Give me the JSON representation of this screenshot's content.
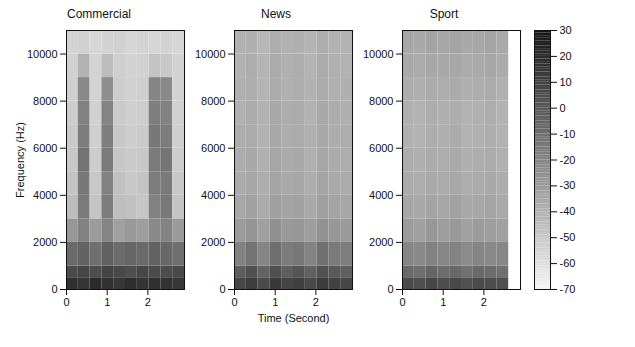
{
  "chart_data": {
    "type": "heatmap",
    "color_range": [
      -70,
      30
    ],
    "color_ticks": [
      30,
      20,
      10,
      0,
      -10,
      -20,
      -30,
      -40,
      -50,
      -60,
      -70
    ],
    "panels": [
      {
        "title": "Commercial",
        "y_label": "Frequency (Hz)",
        "xlim": [
          0,
          2.9
        ],
        "ylim": [
          0,
          11000
        ],
        "xticks": [
          0,
          1,
          2
        ],
        "yticks": [
          0,
          2000,
          4000,
          6000,
          8000,
          10000
        ],
        "time_edges": [
          0,
          0.29,
          0.58,
          0.87,
          1.16,
          1.45,
          1.74,
          2.03,
          2.32,
          2.61,
          2.9
        ],
        "freq_edges": [
          0,
          500,
          1000,
          2000,
          3000,
          4000,
          5000,
          6000,
          7000,
          8000,
          9000,
          10000,
          11000
        ],
        "cells": [
          [
            18,
            16,
            20,
            17,
            15,
            19,
            16,
            18,
            17,
            15
          ],
          [
            6,
            8,
            5,
            9,
            7,
            4,
            8,
            6,
            5,
            7
          ],
          [
            -8,
            -5,
            -10,
            -4,
            -9,
            -6,
            -8,
            -5,
            -7,
            -10
          ],
          [
            -28,
            -18,
            -30,
            -20,
            -32,
            -29,
            -31,
            -22,
            -19,
            -30
          ],
          [
            -45,
            -15,
            -48,
            -16,
            -46,
            -47,
            -49,
            -18,
            -14,
            -48
          ],
          [
            -48,
            -14,
            -50,
            -18,
            -47,
            -50,
            -48,
            -16,
            -15,
            -50
          ],
          [
            -50,
            -12,
            -52,
            -15,
            -49,
            -51,
            -50,
            -15,
            -13,
            -52
          ],
          [
            -51,
            -16,
            -53,
            -17,
            -50,
            -52,
            -51,
            -14,
            -16,
            -53
          ],
          [
            -52,
            -18,
            -54,
            -19,
            -51,
            -53,
            -52,
            -17,
            -18,
            -54
          ],
          [
            -53,
            -22,
            -55,
            -24,
            -52,
            -54,
            -53,
            -20,
            -22,
            -55
          ],
          [
            -54,
            -40,
            -55,
            -45,
            -53,
            -55,
            -54,
            -48,
            -50,
            -55
          ],
          [
            -55,
            -54,
            -56,
            -55,
            -54,
            -56,
            -55,
            -56,
            -55,
            -56
          ]
        ]
      },
      {
        "title": "News",
        "x_label": "Time (Second)",
        "xlim": [
          0,
          2.9
        ],
        "ylim": [
          0,
          11000
        ],
        "xticks": [
          0,
          1,
          2
        ],
        "yticks": [
          0,
          2000,
          4000,
          6000,
          8000,
          10000
        ],
        "time_edges": [
          0,
          0.29,
          0.58,
          0.87,
          1.16,
          1.45,
          1.74,
          2.03,
          2.32,
          2.61,
          2.9
        ],
        "freq_edges": [
          0,
          500,
          1000,
          2000,
          3000,
          4000,
          5000,
          6000,
          7000,
          8000,
          9000,
          10000,
          11000
        ],
        "cells": [
          [
            8,
            12,
            6,
            14,
            9,
            11,
            7,
            13,
            10,
            8
          ],
          [
            -2,
            3,
            -5,
            4,
            -3,
            2,
            -4,
            3,
            -1,
            -3
          ],
          [
            -18,
            -12,
            -20,
            -10,
            -16,
            -14,
            -19,
            -11,
            -15,
            -17
          ],
          [
            -30,
            -27,
            -32,
            -25,
            -29,
            -28,
            -31,
            -26,
            -28,
            -30
          ],
          [
            -35,
            -33,
            -37,
            -32,
            -34,
            -33,
            -36,
            -32,
            -34,
            -35
          ],
          [
            -37,
            -35,
            -38,
            -34,
            -36,
            -35,
            -38,
            -34,
            -36,
            -37
          ],
          [
            -38,
            -36,
            -39,
            -35,
            -37,
            -36,
            -39,
            -35,
            -37,
            -38
          ],
          [
            -38,
            -37,
            -40,
            -36,
            -38,
            -37,
            -39,
            -36,
            -38,
            -38
          ],
          [
            -39,
            -37,
            -40,
            -36,
            -38,
            -37,
            -40,
            -36,
            -38,
            -39
          ],
          [
            -39,
            -38,
            -41,
            -37,
            -39,
            -38,
            -40,
            -37,
            -39,
            -39
          ],
          [
            -40,
            -38,
            -41,
            -37,
            -39,
            -38,
            -41,
            -37,
            -39,
            -40
          ],
          [
            -40,
            -39,
            -42,
            -38,
            -40,
            -39,
            -41,
            -38,
            -40,
            -40
          ]
        ]
      },
      {
        "title": "Sport",
        "xlim": [
          0,
          2.9
        ],
        "ylim": [
          0,
          11000
        ],
        "xticks": [
          0,
          1,
          2
        ],
        "yticks": [
          0,
          2000,
          4000,
          6000,
          8000,
          10000
        ],
        "time_edges": [
          0,
          0.29,
          0.58,
          0.87,
          1.16,
          1.45,
          1.74,
          2.03,
          2.32,
          2.61,
          2.9
        ],
        "freq_edges": [
          0,
          500,
          1000,
          2000,
          3000,
          4000,
          5000,
          6000,
          7000,
          8000,
          9000,
          10000,
          11000
        ],
        "cells": [
          [
            6,
            4,
            8,
            5,
            7,
            3,
            6,
            5,
            4,
            null
          ],
          [
            -8,
            -10,
            -6,
            -9,
            -7,
            -11,
            -8,
            -9,
            -10,
            null
          ],
          [
            -20,
            -22,
            -18,
            -21,
            -19,
            -23,
            -20,
            -22,
            -21,
            null
          ],
          [
            -30,
            -32,
            -28,
            -31,
            -29,
            -33,
            -30,
            -31,
            -32,
            null
          ],
          [
            -35,
            -36,
            -34,
            -35,
            -33,
            -36,
            -35,
            -34,
            -36,
            null
          ],
          [
            -37,
            -38,
            -36,
            -37,
            -35,
            -38,
            -37,
            -36,
            -38,
            null
          ],
          [
            -38,
            -39,
            -37,
            -38,
            -36,
            -39,
            -38,
            -37,
            -39,
            null
          ],
          [
            -39,
            -40,
            -38,
            -39,
            -37,
            -40,
            -39,
            -38,
            -40,
            null
          ],
          [
            -39,
            -40,
            -38,
            -39,
            -38,
            -40,
            -39,
            -38,
            -40,
            null
          ],
          [
            -38,
            -39,
            -37,
            -38,
            -37,
            -39,
            -38,
            -37,
            -39,
            null
          ],
          [
            -36,
            -37,
            -35,
            -36,
            -35,
            -37,
            -36,
            -35,
            -37,
            null
          ],
          [
            -35,
            -36,
            -34,
            -35,
            -34,
            -36,
            -35,
            -34,
            -36,
            null
          ]
        ]
      }
    ]
  }
}
